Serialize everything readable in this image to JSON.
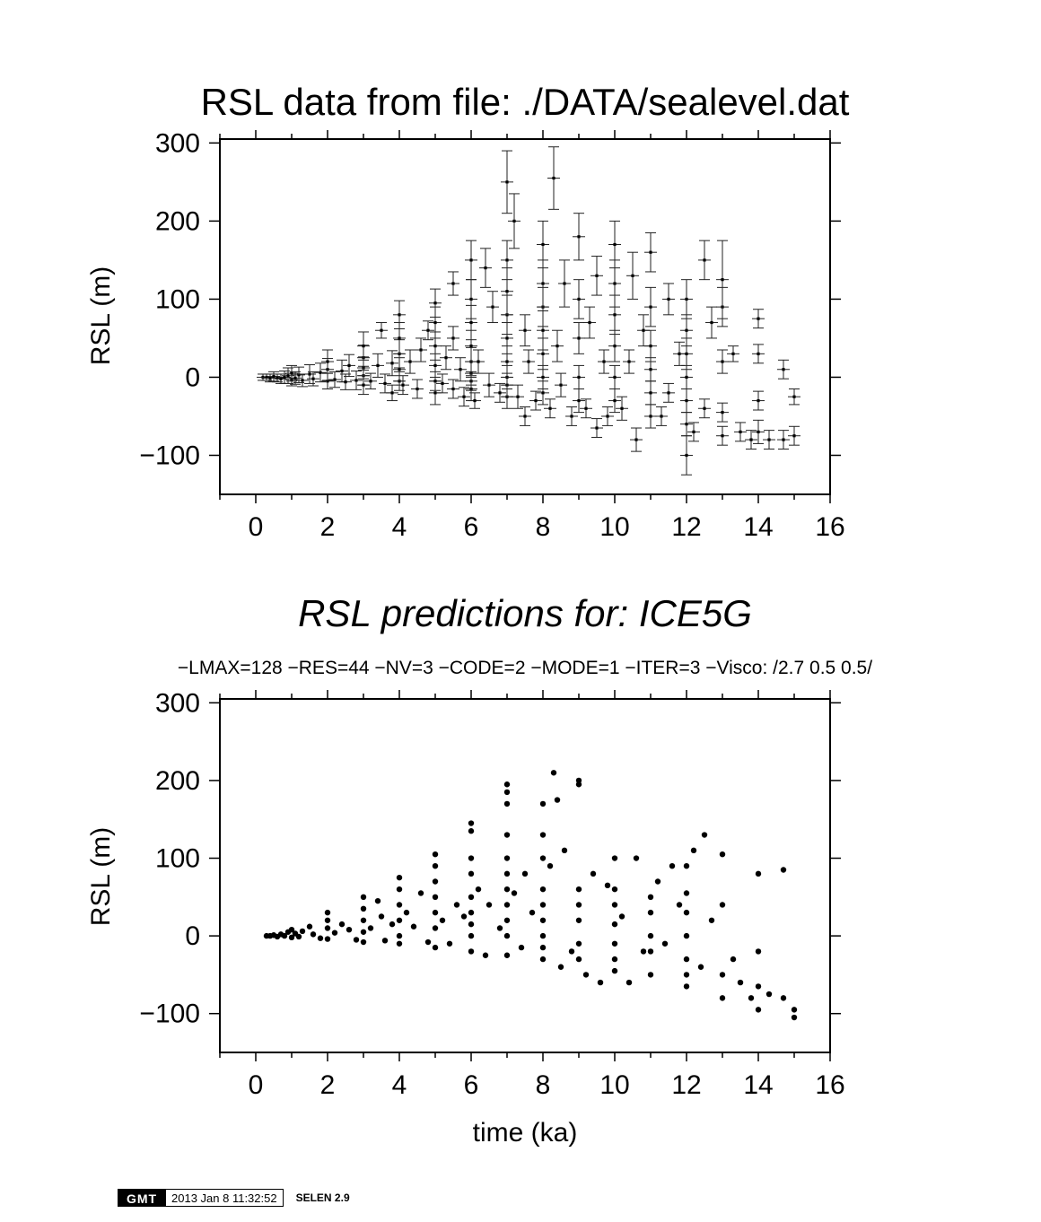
{
  "chart_data": [
    {
      "type": "scatter",
      "title": "RSL data from file: ./DATA/sealevel.dat",
      "ylabel": "RSL (m)",
      "xlabel": "",
      "xlim": [
        -1,
        16
      ],
      "ylim": [
        -150,
        305
      ],
      "x_ticks": [
        0,
        2,
        4,
        6,
        8,
        10,
        12,
        14,
        16
      ],
      "y_ticks": [
        -100,
        0,
        100,
        200,
        300
      ],
      "error_bars": true,
      "grid": false,
      "points": [
        [
          0.2,
          0,
          4
        ],
        [
          0.3,
          0,
          4
        ],
        [
          0.4,
          -1,
          5
        ],
        [
          0.5,
          1,
          6
        ],
        [
          0.6,
          -1,
          5
        ],
        [
          0.7,
          -2,
          6
        ],
        [
          0.8,
          0,
          8
        ],
        [
          0.9,
          2,
          10
        ],
        [
          1.0,
          -3,
          8
        ],
        [
          1.0,
          5,
          10
        ],
        [
          1.1,
          -1,
          8
        ],
        [
          1.2,
          3,
          10
        ],
        [
          1.3,
          -4,
          8
        ],
        [
          1.5,
          4,
          12
        ],
        [
          1.6,
          -2,
          9
        ],
        [
          1.8,
          6,
          12
        ],
        [
          2.0,
          -5,
          10
        ],
        [
          2.0,
          10,
          14
        ],
        [
          2.0,
          20,
          15
        ],
        [
          2.2,
          -3,
          10
        ],
        [
          2.4,
          8,
          14
        ],
        [
          2.5,
          -6,
          10
        ],
        [
          2.6,
          15,
          14
        ],
        [
          2.8,
          -4,
          12
        ],
        [
          3.0,
          2,
          12
        ],
        [
          3.0,
          12,
          14
        ],
        [
          3.0,
          25,
          16
        ],
        [
          3.0,
          40,
          18
        ],
        [
          3.0,
          -10,
          12
        ],
        [
          3.2,
          -5,
          10
        ],
        [
          3.4,
          15,
          15
        ],
        [
          3.5,
          60,
          10
        ],
        [
          3.6,
          -8,
          12
        ],
        [
          3.8,
          18,
          16
        ],
        [
          3.8,
          -20,
          10
        ],
        [
          4.0,
          -5,
          12
        ],
        [
          4.0,
          10,
          15
        ],
        [
          4.0,
          30,
          18
        ],
        [
          4.0,
          50,
          20
        ],
        [
          4.0,
          80,
          18
        ],
        [
          4.1,
          -10,
          12
        ],
        [
          4.3,
          20,
          15
        ],
        [
          4.5,
          -15,
          12
        ],
        [
          4.6,
          35,
          15
        ],
        [
          4.8,
          60,
          12
        ],
        [
          5.0,
          -20,
          15
        ],
        [
          5.0,
          -5,
          12
        ],
        [
          5.0,
          15,
          15
        ],
        [
          5.0,
          40,
          18
        ],
        [
          5.0,
          70,
          20
        ],
        [
          5.0,
          95,
          18
        ],
        [
          5.2,
          -8,
          12
        ],
        [
          5.3,
          25,
          15
        ],
        [
          5.5,
          -15,
          12
        ],
        [
          5.5,
          50,
          15
        ],
        [
          5.5,
          120,
          15
        ],
        [
          5.7,
          10,
          15
        ],
        [
          5.8,
          -25,
          12
        ],
        [
          6.0,
          -15,
          15
        ],
        [
          6.0,
          -5,
          12
        ],
        [
          6.0,
          5,
          15
        ],
        [
          6.0,
          20,
          18
        ],
        [
          6.0,
          40,
          20
        ],
        [
          6.0,
          70,
          22
        ],
        [
          6.0,
          100,
          25
        ],
        [
          6.0,
          150,
          25
        ],
        [
          6.1,
          -30,
          10
        ],
        [
          6.2,
          20,
          15
        ],
        [
          6.4,
          140,
          25
        ],
        [
          6.5,
          -10,
          15
        ],
        [
          6.6,
          90,
          20
        ],
        [
          6.8,
          -20,
          12
        ],
        [
          7.0,
          -25,
          15
        ],
        [
          7.0,
          -10,
          15
        ],
        [
          7.0,
          0,
          15
        ],
        [
          7.0,
          20,
          20
        ],
        [
          7.0,
          50,
          20
        ],
        [
          7.0,
          80,
          25
        ],
        [
          7.0,
          110,
          30
        ],
        [
          7.0,
          150,
          25
        ],
        [
          7.0,
          250,
          40
        ],
        [
          7.2,
          200,
          35
        ],
        [
          7.3,
          -25,
          15
        ],
        [
          7.5,
          60,
          20
        ],
        [
          7.5,
          -50,
          12
        ],
        [
          7.6,
          20,
          15
        ],
        [
          7.8,
          -30,
          12
        ],
        [
          8.0,
          -20,
          15
        ],
        [
          8.0,
          0,
          15
        ],
        [
          8.0,
          30,
          20
        ],
        [
          8.0,
          60,
          25
        ],
        [
          8.0,
          90,
          25
        ],
        [
          8.0,
          120,
          30
        ],
        [
          8.0,
          170,
          30
        ],
        [
          8.2,
          -40,
          12
        ],
        [
          8.3,
          255,
          40
        ],
        [
          8.4,
          40,
          20
        ],
        [
          8.5,
          -10,
          15
        ],
        [
          8.6,
          120,
          30
        ],
        [
          8.8,
          -50,
          12
        ],
        [
          9.0,
          -30,
          15
        ],
        [
          9.0,
          0,
          15
        ],
        [
          9.0,
          50,
          20
        ],
        [
          9.0,
          100,
          25
        ],
        [
          9.0,
          180,
          30
        ],
        [
          9.2,
          -40,
          12
        ],
        [
          9.3,
          70,
          20
        ],
        [
          9.5,
          -65,
          12
        ],
        [
          9.5,
          130,
          25
        ],
        [
          9.7,
          20,
          15
        ],
        [
          9.8,
          -50,
          12
        ],
        [
          10.0,
          -30,
          15
        ],
        [
          10.0,
          0,
          15
        ],
        [
          10.0,
          40,
          20
        ],
        [
          10.0,
          80,
          25
        ],
        [
          10.0,
          120,
          30
        ],
        [
          10.0,
          170,
          30
        ],
        [
          10.2,
          -40,
          15
        ],
        [
          10.4,
          20,
          15
        ],
        [
          10.5,
          130,
          30
        ],
        [
          10.6,
          -80,
          15
        ],
        [
          10.8,
          60,
          20
        ],
        [
          11.0,
          -50,
          15
        ],
        [
          11.0,
          -20,
          15
        ],
        [
          11.0,
          10,
          15
        ],
        [
          11.0,
          40,
          20
        ],
        [
          11.0,
          90,
          25
        ],
        [
          11.0,
          160,
          25
        ],
        [
          11.3,
          -50,
          12
        ],
        [
          11.5,
          100,
          20
        ],
        [
          11.5,
          -20,
          12
        ],
        [
          11.8,
          30,
          15
        ],
        [
          12.0,
          -100,
          25
        ],
        [
          12.0,
          -60,
          15
        ],
        [
          12.0,
          -30,
          15
        ],
        [
          12.0,
          0,
          15
        ],
        [
          12.0,
          30,
          20
        ],
        [
          12.0,
          60,
          20
        ],
        [
          12.0,
          100,
          25
        ],
        [
          12.2,
          -70,
          12
        ],
        [
          12.5,
          150,
          25
        ],
        [
          12.5,
          -40,
          12
        ],
        [
          12.7,
          70,
          20
        ],
        [
          13.0,
          -75,
          12
        ],
        [
          13.0,
          -45,
          12
        ],
        [
          13.0,
          20,
          15
        ],
        [
          13.0,
          90,
          25
        ],
        [
          13.0,
          125,
          50
        ],
        [
          13.3,
          30,
          10
        ],
        [
          13.5,
          -70,
          12
        ],
        [
          13.8,
          -80,
          12
        ],
        [
          14.0,
          -70,
          15
        ],
        [
          14.0,
          -30,
          12
        ],
        [
          14.0,
          30,
          12
        ],
        [
          14.0,
          75,
          12
        ],
        [
          14.3,
          -80,
          12
        ],
        [
          14.7,
          -80,
          12
        ],
        [
          14.7,
          10,
          12
        ],
        [
          15.0,
          -75,
          12
        ],
        [
          15.0,
          -25,
          10
        ]
      ]
    },
    {
      "type": "scatter",
      "title": "RSL predictions for: ICE5G",
      "subtitle": "−LMAX=128 −RES=44 −NV=3 −CODE=2 −MODE=1 −ITER=3  −Visco: /2.7 0.5 0.5/",
      "ylabel": "RSL (m)",
      "xlabel": "time (ka)",
      "xlim": [
        -1,
        16
      ],
      "ylim": [
        -150,
        305
      ],
      "x_ticks": [
        0,
        2,
        4,
        6,
        8,
        10,
        12,
        14,
        16
      ],
      "y_ticks": [
        -100,
        0,
        100,
        200,
        300
      ],
      "grid": false,
      "points": [
        [
          0.3,
          0
        ],
        [
          0.4,
          0
        ],
        [
          0.5,
          1
        ],
        [
          0.6,
          -1
        ],
        [
          0.7,
          2
        ],
        [
          0.8,
          0
        ],
        [
          0.9,
          5
        ],
        [
          1.0,
          -2
        ],
        [
          1.0,
          8
        ],
        [
          1.1,
          3
        ],
        [
          1.2,
          -1
        ],
        [
          1.3,
          6
        ],
        [
          1.5,
          12
        ],
        [
          1.6,
          2
        ],
        [
          1.8,
          -3
        ],
        [
          2.0,
          30
        ],
        [
          2.0,
          20
        ],
        [
          2.0,
          10
        ],
        [
          2.0,
          -4
        ],
        [
          2.2,
          4
        ],
        [
          2.4,
          15
        ],
        [
          2.6,
          8
        ],
        [
          2.8,
          -5
        ],
        [
          3.0,
          50
        ],
        [
          3.0,
          35
        ],
        [
          3.0,
          20
        ],
        [
          3.0,
          5
        ],
        [
          3.0,
          -8
        ],
        [
          3.2,
          10
        ],
        [
          3.4,
          45
        ],
        [
          3.5,
          25
        ],
        [
          3.6,
          -6
        ],
        [
          3.8,
          15
        ],
        [
          4.0,
          75
        ],
        [
          4.0,
          60
        ],
        [
          4.0,
          40
        ],
        [
          4.0,
          20
        ],
        [
          4.0,
          0
        ],
        [
          4.0,
          -10
        ],
        [
          4.2,
          30
        ],
        [
          4.4,
          12
        ],
        [
          4.6,
          55
        ],
        [
          4.8,
          -8
        ],
        [
          5.0,
          105
        ],
        [
          5.0,
          90
        ],
        [
          5.0,
          70
        ],
        [
          5.0,
          50
        ],
        [
          5.0,
          30
        ],
        [
          5.0,
          10
        ],
        [
          5.0,
          -15
        ],
        [
          5.2,
          20
        ],
        [
          5.4,
          -10
        ],
        [
          5.6,
          40
        ],
        [
          5.8,
          25
        ],
        [
          6.0,
          145
        ],
        [
          6.0,
          135
        ],
        [
          6.0,
          100
        ],
        [
          6.0,
          80
        ],
        [
          6.0,
          50
        ],
        [
          6.0,
          30
        ],
        [
          6.0,
          15
        ],
        [
          6.0,
          0
        ],
        [
          6.0,
          -20
        ],
        [
          6.2,
          60
        ],
        [
          6.4,
          -25
        ],
        [
          6.5,
          40
        ],
        [
          6.8,
          10
        ],
        [
          7.0,
          195
        ],
        [
          7.0,
          185
        ],
        [
          7.0,
          170
        ],
        [
          7.0,
          130
        ],
        [
          7.0,
          100
        ],
        [
          7.0,
          80
        ],
        [
          7.0,
          60
        ],
        [
          7.0,
          40
        ],
        [
          7.0,
          20
        ],
        [
          7.0,
          0
        ],
        [
          7.0,
          -25
        ],
        [
          7.2,
          55
        ],
        [
          7.4,
          -15
        ],
        [
          7.5,
          80
        ],
        [
          7.7,
          30
        ],
        [
          8.0,
          170
        ],
        [
          8.0,
          130
        ],
        [
          8.0,
          100
        ],
        [
          8.0,
          60
        ],
        [
          8.0,
          40
        ],
        [
          8.0,
          20
        ],
        [
          8.0,
          0
        ],
        [
          8.0,
          -15
        ],
        [
          8.0,
          -30
        ],
        [
          8.2,
          90
        ],
        [
          8.3,
          210
        ],
        [
          8.4,
          175
        ],
        [
          8.5,
          -40
        ],
        [
          8.6,
          110
        ],
        [
          8.8,
          -20
        ],
        [
          9.0,
          200
        ],
        [
          9.0,
          195
        ],
        [
          9.0,
          60
        ],
        [
          9.0,
          40
        ],
        [
          9.0,
          20
        ],
        [
          9.0,
          -10
        ],
        [
          9.0,
          -30
        ],
        [
          9.2,
          -50
        ],
        [
          9.4,
          80
        ],
        [
          9.6,
          -60
        ],
        [
          9.8,
          65
        ],
        [
          10.0,
          100
        ],
        [
          10.0,
          60
        ],
        [
          10.0,
          40
        ],
        [
          10.0,
          15
        ],
        [
          10.0,
          -10
        ],
        [
          10.0,
          -30
        ],
        [
          10.0,
          -45
        ],
        [
          10.2,
          25
        ],
        [
          10.4,
          -60
        ],
        [
          10.6,
          100
        ],
        [
          10.8,
          -20
        ],
        [
          11.0,
          50
        ],
        [
          11.0,
          30
        ],
        [
          11.0,
          0
        ],
        [
          11.0,
          -20
        ],
        [
          11.0,
          -50
        ],
        [
          11.2,
          70
        ],
        [
          11.4,
          -10
        ],
        [
          11.6,
          90
        ],
        [
          11.8,
          40
        ],
        [
          12.0,
          90
        ],
        [
          12.0,
          55
        ],
        [
          12.0,
          30
        ],
        [
          12.0,
          0
        ],
        [
          12.0,
          -30
        ],
        [
          12.0,
          -50
        ],
        [
          12.0,
          -65
        ],
        [
          12.2,
          110
        ],
        [
          12.4,
          -40
        ],
        [
          12.5,
          130
        ],
        [
          12.7,
          20
        ],
        [
          13.0,
          105
        ],
        [
          13.0,
          -50
        ],
        [
          13.0,
          -80
        ],
        [
          13.0,
          40
        ],
        [
          13.3,
          -30
        ],
        [
          13.5,
          -60
        ],
        [
          13.8,
          -80
        ],
        [
          14.0,
          80
        ],
        [
          14.0,
          -20
        ],
        [
          14.0,
          -65
        ],
        [
          14.0,
          -95
        ],
        [
          14.3,
          -75
        ],
        [
          14.7,
          85
        ],
        [
          14.7,
          -80
        ],
        [
          15.0,
          -95
        ],
        [
          15.0,
          -105
        ]
      ]
    }
  ],
  "stamp": {
    "logo": "GMT",
    "timestamp": "2013 Jan  8 11:32:52",
    "label": "SELEN 2.9"
  }
}
